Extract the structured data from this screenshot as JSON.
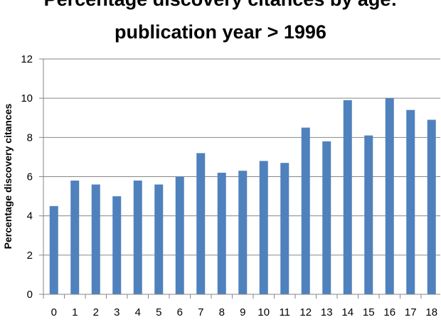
{
  "chart_data": {
    "type": "bar",
    "title_line1": "Percentage discovery citances by age:",
    "title_line2": "publication year > 1996",
    "ylabel": "Percentage discovery citances",
    "xlabel": "",
    "ylim": [
      0,
      12
    ],
    "yticks": [
      0,
      2,
      4,
      6,
      8,
      10,
      12
    ],
    "grid": true,
    "bar_color": "#4f81bd",
    "categories": [
      "0",
      "1",
      "2",
      "3",
      "4",
      "5",
      "6",
      "7",
      "8",
      "9",
      "10",
      "11",
      "12",
      "13",
      "14",
      "15",
      "16",
      "17",
      "18"
    ],
    "values": [
      4.5,
      5.8,
      5.6,
      5.0,
      5.8,
      5.6,
      6.0,
      7.2,
      6.2,
      6.3,
      6.8,
      6.7,
      8.5,
      7.8,
      9.9,
      8.1,
      10.0,
      9.4,
      8.9
    ]
  }
}
